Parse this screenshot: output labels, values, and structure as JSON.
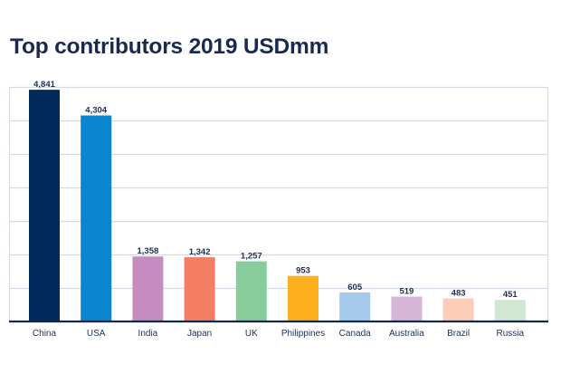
{
  "chart_data": {
    "type": "bar",
    "title": "Top contributors 2019 USDmm",
    "xlabel": "",
    "ylabel": "",
    "categories": [
      "China",
      "USA",
      "India",
      "Japan",
      "UK",
      "Philippines",
      "Canada",
      "Australia",
      "Brazil",
      "Russia"
    ],
    "values": [
      4841,
      4304,
      1358,
      1342,
      1257,
      953,
      605,
      519,
      483,
      451
    ],
    "data_labels": [
      "4,841",
      "4,304",
      "1,358",
      "1,342",
      "1,257",
      "953",
      "605",
      "519",
      "483",
      "451"
    ],
    "colors": [
      "#022a5a",
      "#0a86d1",
      "#c58dbf",
      "#f47e64",
      "#88cc9c",
      "#fdb11e",
      "#a6caec",
      "#d6b5d7",
      "#fdcdb9",
      "#d0e7d2"
    ],
    "ylim": [
      0,
      4900
    ],
    "y_grid_step": 700,
    "grid": true,
    "y_tick_labels_visible": false,
    "legend": "none"
  }
}
